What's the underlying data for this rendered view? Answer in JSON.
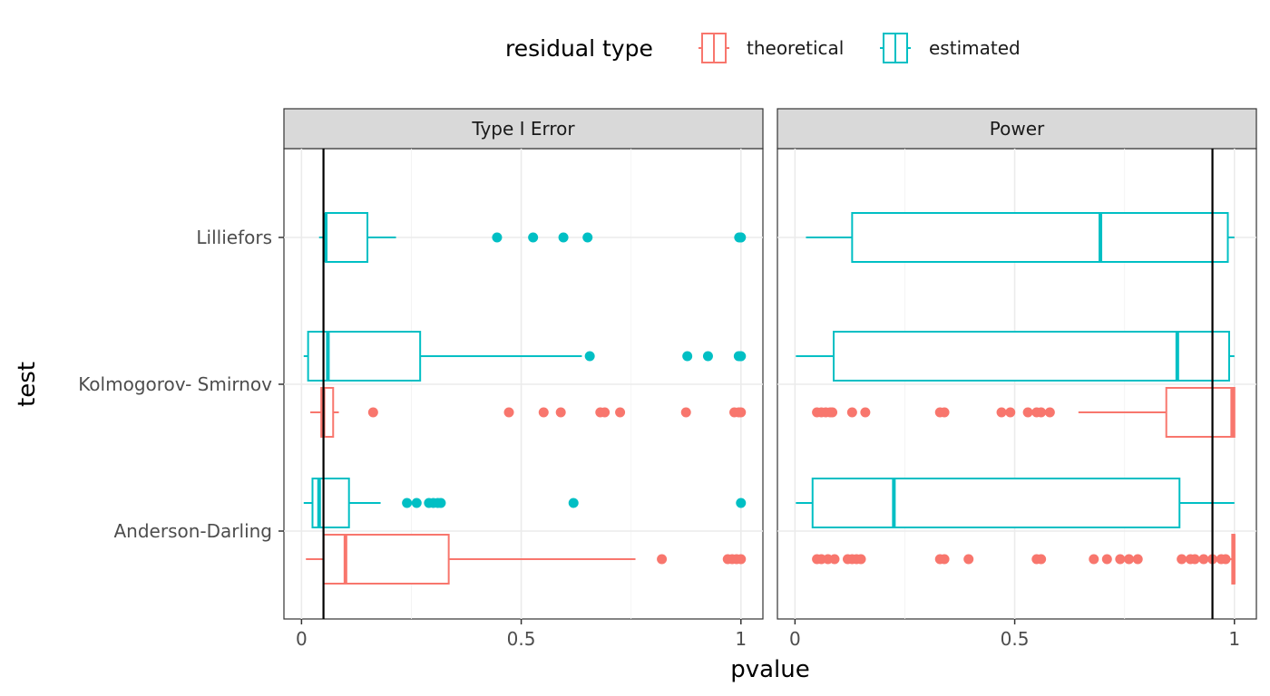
{
  "chart_data": {
    "type": "boxplot",
    "xlabel": "pvalue",
    "ylabel": "test",
    "xlim": [
      -0.04,
      1.05
    ],
    "x_ticks": [
      0,
      0.5,
      1
    ],
    "x_tick_labels": [
      "0",
      "0.5",
      "1"
    ],
    "categories": [
      "Lilliefors",
      "Kolmogorov- Smirnov",
      "Anderson-Darling"
    ],
    "grid": true,
    "legend": {
      "title": "residual type",
      "position": "top",
      "entries": [
        {
          "name": "theoretical",
          "color": "#F8766D"
        },
        {
          "name": "estimated",
          "color": "#00BFC4"
        }
      ]
    },
    "panels": [
      {
        "title": "Type I Error",
        "reference_line": 0.05,
        "boxes": [
          {
            "test": "Lilliefors",
            "series": "estimated",
            "whisker_low": 0.04,
            "q1": 0.055,
            "median": 0.055,
            "q3": 0.15,
            "whisker_high": 0.215,
            "outliers": [
              0.445,
              0.527,
              0.596,
              0.651,
              0.996,
              0.999,
              1.0
            ]
          },
          {
            "test": "Kolmogorov- Smirnov",
            "series": "estimated",
            "whisker_low": 0.005,
            "q1": 0.015,
            "median": 0.06,
            "q3": 0.27,
            "whisker_high": 0.638,
            "outliers": [
              0.656,
              0.878,
              0.925,
              0.995,
              0.999,
              1.0
            ]
          },
          {
            "test": "Kolmogorov- Smirnov",
            "series": "theoretical",
            "whisker_low": 0.02,
            "q1": 0.045,
            "median": 0.05,
            "q3": 0.072,
            "whisker_high": 0.085,
            "outliers": [
              0.163,
              0.472,
              0.551,
              0.59,
              0.68,
              0.69,
              0.725,
              0.875,
              0.985,
              0.995,
              1.0
            ]
          },
          {
            "test": "Anderson-Darling",
            "series": "estimated",
            "whisker_low": 0.005,
            "q1": 0.025,
            "median": 0.04,
            "q3": 0.108,
            "whisker_high": 0.18,
            "outliers": [
              0.24,
              0.262,
              0.29,
              0.3,
              0.31,
              0.317,
              0.619,
              1.0
            ]
          },
          {
            "test": "Anderson-Darling",
            "series": "theoretical",
            "whisker_low": 0.01,
            "q1": 0.05,
            "median": 0.1,
            "q3": 0.335,
            "whisker_high": 0.76,
            "outliers": [
              0.82,
              0.97,
              0.98,
              0.99,
              1.0
            ]
          }
        ]
      },
      {
        "title": "Power",
        "reference_line": 0.95,
        "boxes": [
          {
            "test": "Lilliefors",
            "series": "estimated",
            "whisker_low": 0.025,
            "q1": 0.13,
            "median": 0.695,
            "q3": 0.985,
            "whisker_high": 1.0,
            "outliers": []
          },
          {
            "test": "Kolmogorov- Smirnov",
            "series": "estimated",
            "whisker_low": 0.002,
            "q1": 0.088,
            "median": 0.87,
            "q3": 0.988,
            "whisker_high": 1.0,
            "outliers": []
          },
          {
            "test": "Kolmogorov- Smirnov",
            "series": "theoretical",
            "whisker_low": 0.645,
            "q1": 0.845,
            "median": 0.995,
            "q3": 1.0,
            "whisker_high": 1.0,
            "outliers": [
              0.05,
              0.06,
              0.07,
              0.08,
              0.085,
              0.13,
              0.16,
              0.33,
              0.34,
              0.47,
              0.49,
              0.53,
              0.55,
              0.56,
              0.58
            ]
          },
          {
            "test": "Anderson-Darling",
            "series": "estimated",
            "whisker_low": 0.002,
            "q1": 0.04,
            "median": 0.225,
            "q3": 0.875,
            "whisker_high": 1.0,
            "outliers": []
          },
          {
            "test": "Anderson-Darling",
            "series": "theoretical",
            "whisker_low": 0.99,
            "q1": 0.995,
            "median": 0.998,
            "q3": 1.0,
            "whisker_high": 1.0,
            "outliers": [
              0.05,
              0.06,
              0.075,
              0.09,
              0.12,
              0.13,
              0.14,
              0.15,
              0.33,
              0.34,
              0.395,
              0.55,
              0.56,
              0.68,
              0.71,
              0.74,
              0.76,
              0.78,
              0.88,
              0.9,
              0.91,
              0.93,
              0.95,
              0.97,
              0.98
            ]
          }
        ]
      }
    ]
  }
}
